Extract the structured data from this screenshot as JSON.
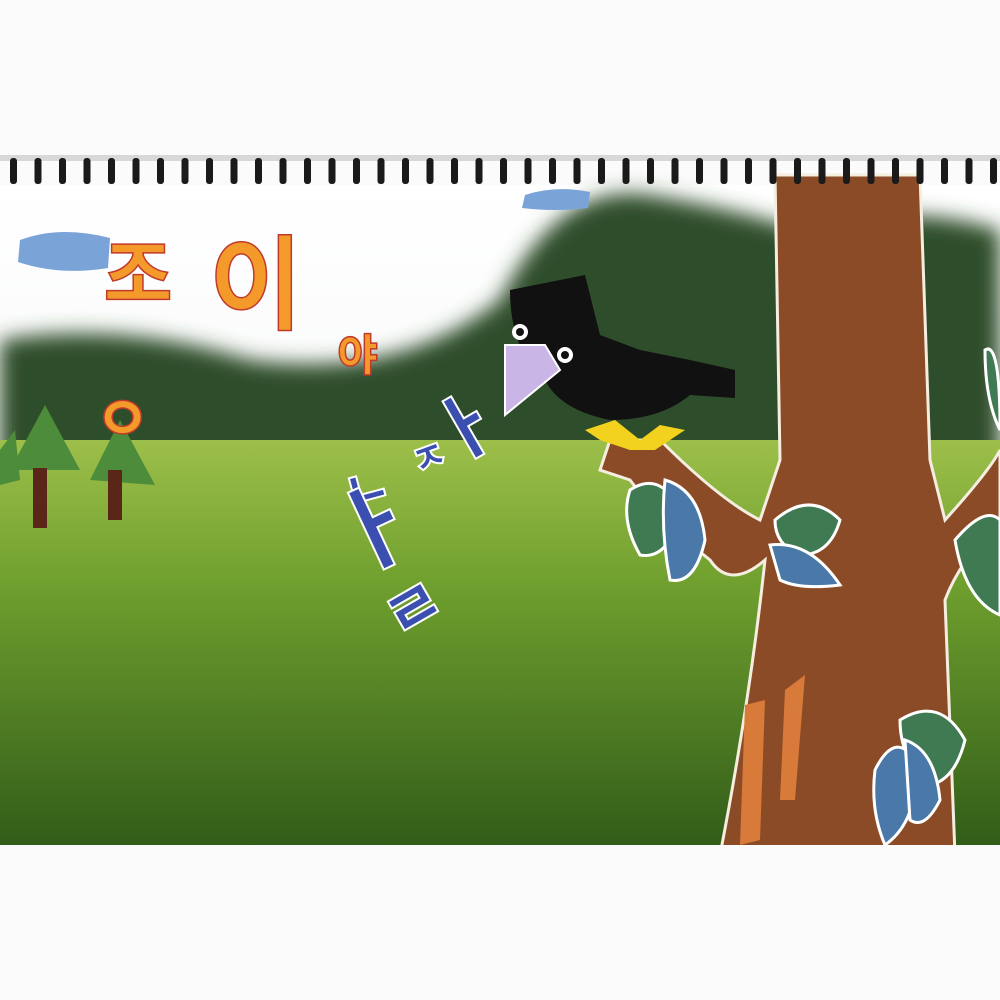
{
  "orange_letters": [
    "조",
    "이",
    "야",
    "ㅇ"
  ],
  "blue_letters": [
    "ㅈ",
    "ㅏ",
    "ㄴ",
    "ㅏ",
    "ㄹ"
  ]
}
